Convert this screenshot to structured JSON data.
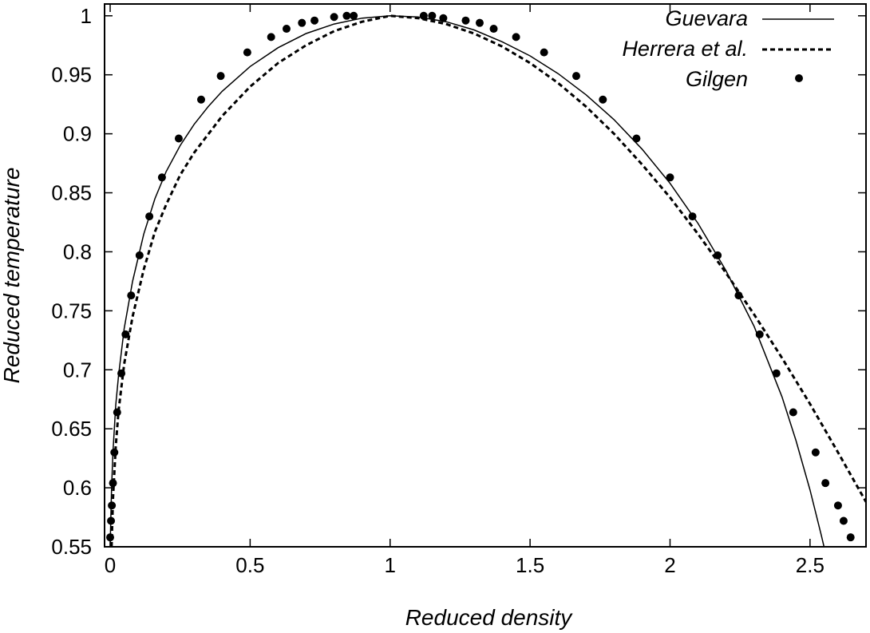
{
  "chart_data": {
    "type": "line",
    "title": "",
    "xlabel": "Reduced density",
    "ylabel": "Reduced temperature",
    "xlim": [
      -0.02,
      2.7
    ],
    "ylim": [
      0.55,
      1.01
    ],
    "x_ticks": [
      0,
      0.5,
      1,
      1.5,
      2,
      2.5
    ],
    "x_tick_labels": [
      "0",
      "0.5",
      "1",
      "1.5",
      "2",
      "2.5"
    ],
    "y_ticks": [
      0.55,
      0.6,
      0.65,
      0.7,
      0.75,
      0.8,
      0.85,
      0.9,
      0.95,
      1
    ],
    "y_tick_labels": [
      "0.55",
      "0.6",
      "0.65",
      "0.7",
      "0.75",
      "0.8",
      "0.85",
      "0.9",
      "0.95",
      "1"
    ],
    "grid": false,
    "legend_position": "top-right",
    "series": [
      {
        "name": "Guevara",
        "style": "solid-thin",
        "color": "#000000",
        "x": [
          0.0,
          0.002,
          0.005,
          0.01,
          0.02,
          0.03,
          0.05,
          0.08,
          0.12,
          0.16,
          0.2,
          0.25,
          0.3,
          0.35,
          0.4,
          0.5,
          0.6,
          0.7,
          0.8,
          0.9,
          1.0,
          1.1,
          1.2,
          1.3,
          1.4,
          1.5,
          1.6,
          1.7,
          1.8,
          1.9,
          2.0,
          2.1,
          2.2,
          2.3,
          2.4,
          2.45,
          2.5,
          2.54,
          2.56
        ],
        "y": [
          0.55,
          0.57,
          0.6,
          0.63,
          0.67,
          0.695,
          0.735,
          0.775,
          0.815,
          0.845,
          0.868,
          0.89,
          0.908,
          0.923,
          0.936,
          0.957,
          0.973,
          0.985,
          0.993,
          0.998,
          1.0,
          0.999,
          0.995,
          0.988,
          0.978,
          0.966,
          0.951,
          0.933,
          0.912,
          0.887,
          0.858,
          0.824,
          0.784,
          0.737,
          0.677,
          0.64,
          0.598,
          0.56,
          0.54
        ]
      },
      {
        "name": "Herrera et al.",
        "style": "dashed",
        "color": "#000000",
        "x": [
          0.005,
          0.01,
          0.02,
          0.03,
          0.05,
          0.08,
          0.12,
          0.16,
          0.2,
          0.25,
          0.3,
          0.4,
          0.5,
          0.6,
          0.7,
          0.8,
          0.9,
          1.0,
          1.1,
          1.2,
          1.3,
          1.4,
          1.5,
          1.6,
          1.7,
          1.8,
          1.9,
          2.0,
          2.1,
          2.2,
          2.3,
          2.4,
          2.5,
          2.6,
          2.7
        ],
        "y": [
          0.55,
          0.59,
          0.635,
          0.665,
          0.705,
          0.745,
          0.785,
          0.817,
          0.84,
          0.865,
          0.884,
          0.915,
          0.94,
          0.96,
          0.975,
          0.987,
          0.995,
          1.0,
          0.998,
          0.993,
          0.985,
          0.974,
          0.96,
          0.943,
          0.923,
          0.9,
          0.874,
          0.846,
          0.815,
          0.782,
          0.747,
          0.71,
          0.671,
          0.63,
          0.588
        ]
      },
      {
        "name": "Gilgen",
        "style": "points",
        "color": "#000000",
        "x": [
          0.0,
          0.003,
          0.006,
          0.01,
          0.015,
          0.025,
          0.04,
          0.055,
          0.075,
          0.105,
          0.14,
          0.185,
          0.245,
          0.325,
          0.395,
          0.49,
          0.575,
          0.63,
          0.685,
          0.73,
          0.8,
          0.845,
          0.87,
          1.12,
          1.15,
          1.19,
          1.27,
          1.32,
          1.37,
          1.45,
          1.55,
          1.665,
          1.76,
          1.88,
          2.0,
          2.08,
          2.17,
          2.245,
          2.32,
          2.38,
          2.44,
          2.52,
          2.555,
          2.6,
          2.62,
          2.645
        ],
        "y": [
          0.558,
          0.572,
          0.585,
          0.604,
          0.63,
          0.664,
          0.697,
          0.73,
          0.763,
          0.797,
          0.83,
          0.863,
          0.896,
          0.929,
          0.949,
          0.969,
          0.982,
          0.989,
          0.994,
          0.996,
          0.999,
          1.0,
          1.0,
          1.0,
          1.0,
          0.998,
          0.996,
          0.994,
          0.989,
          0.982,
          0.969,
          0.949,
          0.929,
          0.896,
          0.863,
          0.83,
          0.797,
          0.763,
          0.73,
          0.697,
          0.664,
          0.63,
          0.604,
          0.585,
          0.572,
          0.558
        ]
      }
    ]
  }
}
